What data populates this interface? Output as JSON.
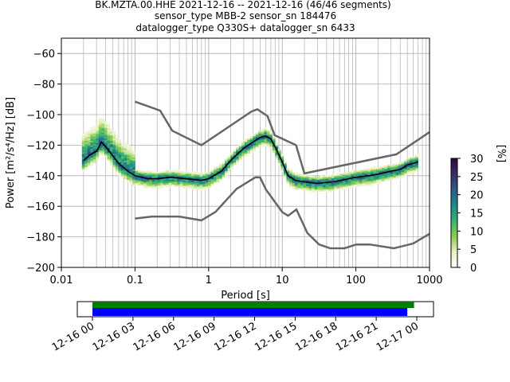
{
  "header": {
    "title_lines": [
      "BK.MZTA.00.HHE   2021-12-16 -- 2021-12-16  (46/46 segments)",
      "sensor_type MBB-2 sensor_sn 184476",
      "datalogger_type Q330S+ datalogger_sn 6433"
    ]
  },
  "chart_data": {
    "type": "heatmap",
    "xlabel": "Period [s]",
    "ylabel": "Power [m²/s⁴/Hz] [dB]",
    "xscale": "log",
    "xlim": [
      0.01,
      1000
    ],
    "ylim": [
      -200,
      -50
    ],
    "x_tick_labels": [
      "0.01",
      "0.1",
      "1",
      "10",
      "100",
      "1000"
    ],
    "y_tick_labels": [
      "−60",
      "−80",
      "−100",
      "−120",
      "−140",
      "−160",
      "−180",
      "−200"
    ],
    "y_ticks": [
      -60,
      -80,
      -100,
      -120,
      -140,
      -160,
      -180,
      -200
    ],
    "grid": true,
    "mode_curve": {
      "color": "#000000",
      "period": [
        0.02,
        0.025,
        0.03,
        0.035,
        0.04,
        0.05,
        0.06,
        0.08,
        0.1,
        0.15,
        0.2,
        0.3,
        0.5,
        0.8,
        1.0,
        1.5,
        2,
        3,
        4,
        5,
        6,
        7,
        8,
        10,
        12,
        15,
        20,
        30,
        50,
        80,
        100,
        150,
        200,
        300,
        400,
        500,
        700
      ],
      "power": [
        -130,
        -126,
        -124,
        -118,
        -121,
        -127,
        -132,
        -137,
        -140,
        -142,
        -142,
        -141,
        -142,
        -143,
        -142,
        -137,
        -130,
        -122,
        -118,
        -115,
        -114,
        -116,
        -121,
        -131,
        -140,
        -143,
        -144,
        -145,
        -144,
        -142,
        -141,
        -140,
        -139,
        -137,
        -136,
        -133,
        -131
      ]
    },
    "nhnm": {
      "color": "#666666",
      "period": [
        0.1,
        0.22,
        0.32,
        0.8,
        3.8,
        4.6,
        6.3,
        7.9,
        15.4,
        20,
        354.8,
        1000
      ],
      "power": [
        -91.5,
        -97.4,
        -110.5,
        -120,
        -98,
        -96.5,
        -101,
        -113.5,
        -120,
        -138.5,
        -126,
        -111.5
      ]
    },
    "nlnm": {
      "color": "#666666",
      "period": [
        0.1,
        0.17,
        0.4,
        0.8,
        1.24,
        2.4,
        4.3,
        5.0,
        6.0,
        10.0,
        12.0,
        15.6,
        21.9,
        31.6,
        45,
        70,
        101,
        154,
        328,
        600,
        1000
      ],
      "power": [
        -168,
        -166.7,
        -166.7,
        -169.2,
        -163.7,
        -148.6,
        -141.1,
        -141.1,
        -149,
        -163.8,
        -166.2,
        -162.1,
        -177.5,
        -185,
        -187.5,
        -187.5,
        -185,
        -185,
        -187.5,
        -184.4,
        -178
      ]
    },
    "colorbar": {
      "label": "[%]",
      "range": [
        0,
        30
      ],
      "tick_labels": [
        "0",
        "5",
        "10",
        "15",
        "20",
        "25",
        "30"
      ],
      "ticks": [
        0,
        5,
        10,
        15,
        20,
        25,
        30
      ],
      "colors": [
        "#ffffff",
        "#e6f0c0",
        "#8ccb4e",
        "#36b36f",
        "#1f8a8a",
        "#2d5a8a",
        "#3a2a6e",
        "#2a0a3a"
      ]
    }
  },
  "timeline": {
    "tick_labels": [
      "12-16 00",
      "12-16 03",
      "12-16 06",
      "12-16 09",
      "12-16 12",
      "12-16 15",
      "12-16 18",
      "12-16 21",
      "12-17 00"
    ],
    "data_bar_color": "#008000",
    "segments_bar_color": "#0000ff",
    "data_coverage_end_hours": 23.8,
    "segments_coverage_end_hours": 23.3
  }
}
